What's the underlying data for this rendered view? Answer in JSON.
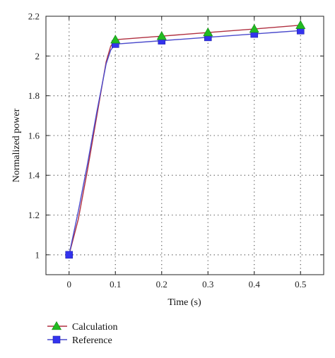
{
  "chart_data": {
    "type": "line",
    "title": "",
    "xlabel": "Time (s)",
    "ylabel": "Normalized power",
    "xlim": [
      -0.05,
      0.55
    ],
    "ylim": [
      0.9,
      2.2
    ],
    "x_ticks": [
      0,
      0.1,
      0.2,
      0.3,
      0.4,
      0.5
    ],
    "x_tick_labels": [
      "0",
      "0.1",
      "0.2",
      "0.3",
      "0.4",
      "0.5"
    ],
    "y_ticks": [
      1,
      1.2,
      1.4,
      1.6,
      1.8,
      2,
      2.2
    ],
    "y_tick_labels": [
      "1",
      "1.2",
      "1.4",
      "1.6",
      "1.8",
      "2",
      "2.2"
    ],
    "grid": true,
    "legend_position": "bottom-left, below plot",
    "series": [
      {
        "name": "Calculation",
        "color": "#b03040",
        "marker": "triangle",
        "marker_color": "#22bb22",
        "curve": [
          [
            0,
            1.0
          ],
          [
            0.02,
            1.18
          ],
          [
            0.04,
            1.43
          ],
          [
            0.06,
            1.7
          ],
          [
            0.08,
            1.97
          ],
          [
            0.09,
            2.05
          ],
          [
            0.1,
            2.082
          ],
          [
            0.2,
            2.1
          ],
          [
            0.3,
            2.118
          ],
          [
            0.4,
            2.136
          ],
          [
            0.5,
            2.155
          ]
        ],
        "points": [
          [
            0.1,
            2.082
          ],
          [
            0.2,
            2.1
          ],
          [
            0.3,
            2.118
          ],
          [
            0.4,
            2.136
          ],
          [
            0.5,
            2.155
          ]
        ]
      },
      {
        "name": "Reference",
        "color": "#4a4acc",
        "marker": "square",
        "marker_color": "#3333ee",
        "curve": [
          [
            0,
            1.0
          ],
          [
            0.02,
            1.22
          ],
          [
            0.04,
            1.46
          ],
          [
            0.06,
            1.72
          ],
          [
            0.08,
            1.96
          ],
          [
            0.09,
            2.03
          ],
          [
            0.1,
            2.06
          ],
          [
            0.2,
            2.077
          ],
          [
            0.3,
            2.094
          ],
          [
            0.4,
            2.111
          ],
          [
            0.5,
            2.128
          ]
        ],
        "points": [
          [
            0,
            1.0
          ],
          [
            0.1,
            2.06
          ],
          [
            0.2,
            2.077
          ],
          [
            0.3,
            2.094
          ],
          [
            0.4,
            2.111
          ],
          [
            0.5,
            2.128
          ]
        ]
      }
    ]
  }
}
